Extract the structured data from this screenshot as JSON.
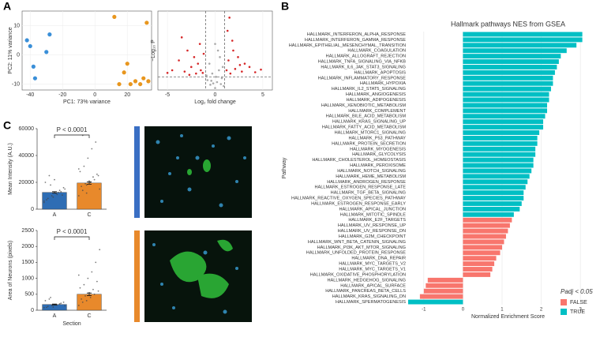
{
  "chart_data": [
    {
      "type": "scatter",
      "xlabel": "PC1: 73% variance",
      "ylabel": "PC2: 11% variance",
      "xlim": [
        -45,
        35
      ],
      "xticks": [
        -40,
        -20,
        0,
        20
      ],
      "ylim": [
        -12,
        15
      ],
      "yticks": [
        -10,
        0,
        10
      ],
      "grid": true,
      "series": [
        {
          "color": "#3a8fd8",
          "x": [
            -40,
            -42,
            -38,
            -37,
            -30,
            -28
          ],
          "y": [
            3,
            5,
            -4,
            -8,
            1,
            7
          ]
        },
        {
          "color": "#e8961e",
          "x": [
            12,
            32,
            20,
            18,
            25,
            28,
            30,
            33,
            15,
            22
          ],
          "y": [
            13,
            11,
            -3,
            -6,
            -9,
            -10,
            -8,
            -9,
            -10,
            -10
          ]
        }
      ]
    },
    {
      "type": "scatter",
      "xlabel": "Log₂ fold change",
      "ylabel": "−Log₁₀ P",
      "xlim": [
        -6,
        6
      ],
      "xticks": [
        -5,
        0,
        5
      ],
      "ylim": [
        0,
        12
      ],
      "grid": true,
      "thresholds": {
        "x": [
          -1,
          1
        ],
        "y": 2
      },
      "series": [
        {
          "color": "#aaaaaa",
          "x": [
            -0.8,
            -0.5,
            -0.3,
            0,
            0.2,
            0.4,
            0.7,
            0.9,
            -0.6,
            0.1,
            0.5,
            -0.2,
            0.3,
            -0.9,
            0.8,
            0,
            -0.4,
            0.6
          ],
          "y": [
            1.5,
            0.8,
            2.5,
            0.3,
            1.2,
            3,
            1.8,
            0.6,
            4,
            2,
            5,
            1,
            6,
            2.2,
            3.5,
            7,
            1.4,
            0.9
          ]
        },
        {
          "color": "#d62728",
          "x": [
            -4.5,
            -3.8,
            -3.2,
            -2.9,
            -2.5,
            -2.2,
            -2,
            -1.8,
            -1.5,
            -1.3,
            -1.2,
            -3.5,
            -2.7,
            -1.6,
            1.2,
            1.4,
            1.6,
            1.9,
            2.1,
            2.4,
            2.8,
            3.1,
            3.6,
            4.2,
            1.3,
            1.8,
            2.6,
            1.5,
            4.8,
            -5
          ],
          "y": [
            3,
            4.5,
            2.8,
            6,
            3.5,
            5,
            2.5,
            4,
            3,
            2.6,
            5.5,
            8,
            2.3,
            7,
            3,
            4.5,
            2.5,
            6,
            3.2,
            5,
            2.8,
            4,
            3.5,
            2.7,
            9,
            7.5,
            3.8,
            11,
            3.1,
            2.6
          ]
        }
      ]
    },
    {
      "type": "barh",
      "title": "Hallmark pathways NES from GSEA",
      "xlabel": "Normalized Enrichment Score",
      "ylabel": "Pathway",
      "xlim": [
        -1.4,
        3.3
      ],
      "xticks": [
        -1,
        0,
        1,
        2,
        3
      ],
      "grid": true,
      "legend": {
        "title": "Padj < 0.05",
        "position": "lower right",
        "entries": [
          {
            "name": "FALSE",
            "color": "#f8766d"
          },
          {
            "name": "TRUE",
            "color": "#00bfc4"
          }
        ]
      },
      "categories": [
        "HALLMARK_INTERFERON_ALPHA_RESPONSE",
        "HALLMARK_INTERFERON_GAMMA_RESPONSE",
        "HALLMARK_EPITHELIAL_MESENCHYMAL_TRANSITION",
        "HALLMARK_COAGULATION",
        "HALLMARK_ALLOGRAFT_REJECTION",
        "HALLMARK_TNFA_SIGNALING_VIA_NFKB",
        "HALLMARK_IL6_JAK_STAT3_SIGNALING",
        "HALLMARK_APOPTOSIS",
        "HALLMARK_INFLAMMATORY_RESPONSE",
        "HALLMARK_HYPOXIA",
        "HALLMARK_IL2_STAT5_SIGNALING",
        "HALLMARK_ANGIOGENESIS",
        "HALLMARK_ADIPOGENESIS",
        "HALLMARK_XENOBIOTIC_METABOLISM",
        "HALLMARK_COMPLEMENT",
        "HALLMARK_BILE_ACID_METABOLISM",
        "HALLMARK_KRAS_SIGNALING_UP",
        "HALLMARK_FATTY_ACID_METABOLISM",
        "HALLMARK_MTORC1_SIGNALING",
        "HALLMARK_P53_PATHWAY",
        "HALLMARK_PROTEIN_SECRETION",
        "HALLMARK_MYOGENESIS",
        "HALLMARK_GLYCOLYSIS",
        "HALLMARK_CHOLESTEROL_HOMEOSTASIS",
        "HALLMARK_PEROXISOME",
        "HALLMARK_NOTCH_SIGNALING",
        "HALLMARK_HEME_METABOLISM",
        "HALLMARK_ANDROGEN_RESPONSE",
        "HALLMARK_ESTROGEN_RESPONSE_LATE",
        "HALLMARK_TGF_BETA_SIGNALING",
        "HALLMARK_REACTIVE_OXYGEN_SPECIES_PATHWAY",
        "HALLMARK_ESTROGEN_RESPONSE_EARLY",
        "HALLMARK_APICAL_JUNCTION",
        "HALLMARK_MITOTIC_SPINDLE",
        "HALLMARK_E2F_TARGETS",
        "HALLMARK_UV_RESPONSE_UP",
        "HALLMARK_UV_RESPONSE_DN",
        "HALLMARK_G2M_CHECKPOINT",
        "HALLMARK_WNT_BETA_CATENIN_SIGNALING",
        "HALLMARK_PI3K_AKT_MTOR_SIGNALING",
        "HALLMARK_UNFOLDED_PROTEIN_RESPONSE",
        "HALLMARK_DNA_REPAIR",
        "HALLMARK_MYC_TARGETS_V2",
        "HALLMARK_MYC_TARGETS_V1",
        "HALLMARK_OXIDATIVE_PHOSPHORYLATION",
        "HALLMARK_HEDGEHOG_SIGNALING",
        "HALLMARK_APICAL_SURFACE",
        "HALLMARK_PANCREAS_BETA_CELLS",
        "HALLMARK_KRAS_SIGNALING_DN",
        "HALLMARK_SPERMATOGENESIS"
      ],
      "values": [
        3.05,
        3.05,
        2.9,
        2.65,
        2.5,
        2.45,
        2.4,
        2.35,
        2.3,
        2.3,
        2.25,
        2.2,
        2.2,
        2.15,
        2.15,
        2.1,
        2.05,
        2.05,
        1.95,
        1.9,
        1.9,
        1.85,
        1.85,
        1.8,
        1.8,
        1.75,
        1.7,
        1.65,
        1.6,
        1.55,
        1.55,
        1.5,
        1.45,
        1.3,
        1.25,
        1.2,
        1.15,
        1.1,
        1.05,
        1.0,
        0.95,
        0.85,
        0.8,
        0.75,
        0.7,
        -0.9,
        -0.95,
        -1.0,
        -1.1,
        -1.4
      ],
      "groups": [
        "TRUE",
        "TRUE",
        "TRUE",
        "TRUE",
        "TRUE",
        "TRUE",
        "TRUE",
        "TRUE",
        "TRUE",
        "TRUE",
        "TRUE",
        "TRUE",
        "TRUE",
        "TRUE",
        "TRUE",
        "TRUE",
        "TRUE",
        "TRUE",
        "TRUE",
        "TRUE",
        "TRUE",
        "TRUE",
        "TRUE",
        "TRUE",
        "TRUE",
        "TRUE",
        "TRUE",
        "TRUE",
        "TRUE",
        "TRUE",
        "TRUE",
        "TRUE",
        "TRUE",
        "TRUE",
        "FALSE",
        "FALSE",
        "FALSE",
        "FALSE",
        "FALSE",
        "FALSE",
        "FALSE",
        "FALSE",
        "FALSE",
        "FALSE",
        "FALSE",
        "FALSE",
        "FALSE",
        "FALSE",
        "FALSE",
        "TRUE"
      ]
    },
    {
      "type": "bar",
      "ylabel": "Mean Intensity (A.U.)",
      "annotation": "P < 0.0001",
      "ylim": [
        0,
        60000
      ],
      "yticks": [
        0,
        20000,
        40000,
        60000
      ],
      "categories": [
        "A",
        "C"
      ],
      "colors": [
        "#2e6db4",
        "#e8892b"
      ],
      "values": [
        12500,
        19500
      ],
      "errors": [
        600,
        900
      ],
      "points": [
        [
          5000,
          8000,
          10000,
          12000,
          14000,
          16000,
          20000,
          25000,
          9000,
          11000,
          13000,
          15000,
          7000,
          18000,
          22000,
          12500,
          10500,
          6000
        ],
        [
          10000,
          14000,
          18000,
          20000,
          22000,
          25000,
          28000,
          32000,
          38000,
          45000,
          50000,
          15000,
          17000,
          19000,
          21000,
          24000,
          26000,
          30000,
          55000,
          12000
        ]
      ]
    },
    {
      "type": "bar",
      "ylabel": "Area of Neurons (pixels)",
      "xlabel": "Section",
      "annotation": "P < 0.0001",
      "ylim": [
        0,
        2500
      ],
      "yticks": [
        0,
        500,
        1000,
        1500,
        2000,
        2500
      ],
      "categories": [
        "A",
        "C"
      ],
      "colors": [
        "#2e6db4",
        "#e8892b"
      ],
      "values": [
        180,
        500
      ],
      "errors": [
        15,
        40
      ],
      "points": [
        [
          80,
          120,
          150,
          180,
          200,
          250,
          300,
          350,
          100,
          160,
          220,
          140,
          90,
          400
        ],
        [
          150,
          250,
          300,
          400,
          500,
          600,
          700,
          800,
          1000,
          1200,
          1500,
          1900,
          350,
          450,
          550,
          650,
          900,
          1100
        ]
      ]
    }
  ]
}
